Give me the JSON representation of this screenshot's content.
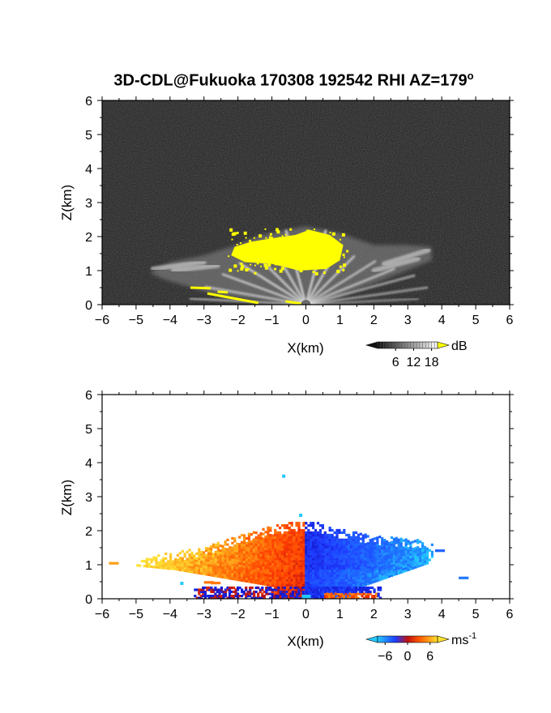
{
  "title": "3D-CDL@Fukuoka 170308 192542 RHI AZ=179",
  "title_degree": "o",
  "chart_data": [
    {
      "type": "heatmap",
      "panel": "top",
      "quantity": "backscatter intensity",
      "xlabel": "X(km)",
      "ylabel": "Z(km)",
      "xlim": [
        -6,
        6
      ],
      "ylim": [
        0,
        6
      ],
      "x_ticks": [
        "-6",
        "-5",
        "-4",
        "-3",
        "-2",
        "-1",
        "0",
        "1",
        "2",
        "3",
        "4",
        "5",
        "6"
      ],
      "y_ticks": [
        "0",
        "1",
        "2",
        "3",
        "4",
        "5",
        "6"
      ],
      "colorbar": {
        "unit": "dB",
        "ticks": [
          "6",
          "12",
          "18"
        ],
        "range": [
          0,
          20
        ]
      },
      "background": "noise",
      "echo_region": {
        "x_range": [
          -4.6,
          3.7
        ],
        "z_top": 2.3
      },
      "saturated_core": {
        "x_range": [
          -2.2,
          1.1
        ],
        "z_range": [
          0.95,
          2.2
        ]
      },
      "colors": {
        "noise": "#1e1e1e",
        "echo": "#bdbdbd",
        "saturated": "#ffff00"
      }
    },
    {
      "type": "heatmap",
      "panel": "bottom",
      "quantity": "radial velocity",
      "xlabel": "X(km)",
      "ylabel": "Z(km)",
      "xlim": [
        -6,
        6
      ],
      "ylim": [
        0,
        6
      ],
      "x_ticks": [
        "-6",
        "-5",
        "-4",
        "-3",
        "-2",
        "-1",
        "0",
        "1",
        "2",
        "3",
        "4",
        "5",
        "6"
      ],
      "y_ticks": [
        "0",
        "1",
        "2",
        "3",
        "4",
        "5",
        "6"
      ],
      "colorbar": {
        "unit": "ms",
        "unit_exponent": "-1",
        "ticks": [
          "-6",
          "0",
          "6"
        ],
        "range": [
          -8,
          8
        ]
      },
      "velocity_field": [
        {
          "x_range": [
            -5.0,
            -2.5
          ],
          "z_range": [
            0.8,
            1.4
          ],
          "velocity": 7
        },
        {
          "x_range": [
            -2.5,
            -0.1
          ],
          "z_range": [
            0.3,
            2.2
          ],
          "velocity": 3
        },
        {
          "x_range": [
            0.0,
            1.4
          ],
          "z_range": [
            0.3,
            2.2
          ],
          "velocity": -4
        },
        {
          "x_range": [
            1.4,
            3.8
          ],
          "z_range": [
            0.3,
            1.8
          ],
          "velocity": -6
        },
        {
          "x_range": [
            -3.5,
            2.0
          ],
          "z_range": [
            0.0,
            0.3
          ],
          "velocity": -1
        }
      ],
      "isolated_pixels": [
        {
          "x": -0.7,
          "z": 3.65
        },
        {
          "x": -0.2,
          "z": 2.5
        },
        {
          "x": -3.7,
          "z": 0.5
        }
      ],
      "colors": {
        "toward_neg": "#1e3cff",
        "toward_pos": "#ff3a00",
        "high_pos": "#ffd22a",
        "high_neg": "#23c8ff"
      }
    }
  ]
}
